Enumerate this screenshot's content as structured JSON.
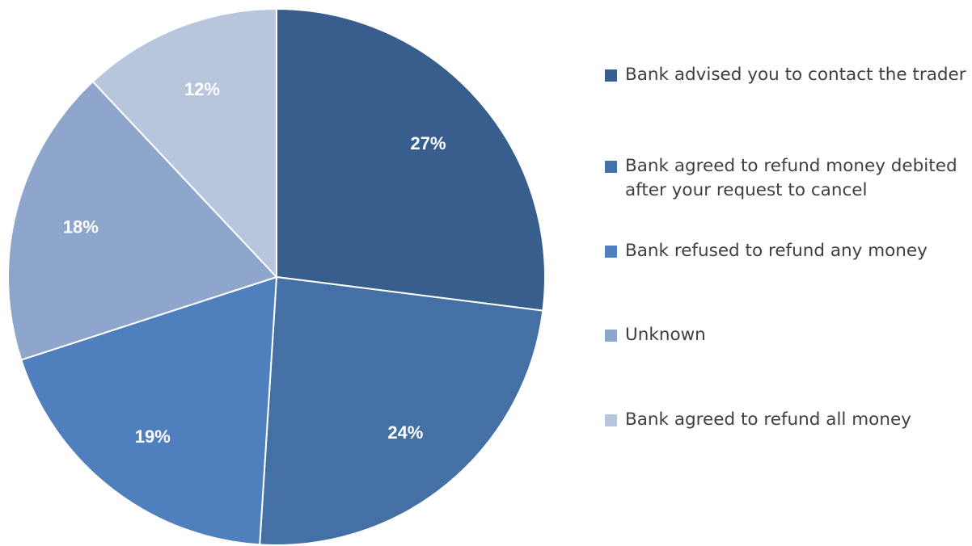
{
  "chart_data": {
    "type": "pie",
    "title": "",
    "legend_position": "right",
    "start_angle_deg": 0,
    "direction": "clockwise",
    "slices": [
      {
        "label": "Bank advised you to contact the trader",
        "value": 27,
        "display": "27%",
        "color": "#375E8C"
      },
      {
        "label": "Bank agreed to refund money debited after your request to cancel",
        "value": 24,
        "display": "24%",
        "color": "#4470A5"
      },
      {
        "label": "Bank refused to refund any money",
        "value": 19,
        "display": "19%",
        "color": "#4F7FBD"
      },
      {
        "label": "Unknown",
        "value": 18,
        "display": "18%",
        "color": "#8EA6CC"
      },
      {
        "label": "Bank agreed to refund all money",
        "value": 12,
        "display": "12%",
        "color": "#B8C6DD"
      }
    ]
  },
  "legend": {
    "items": [
      {
        "label": "Bank advised you to contact the trader",
        "color": "#375E8C"
      },
      {
        "label": "Bank agreed to refund money debited after your request to cancel",
        "color": "#4470A5"
      },
      {
        "label": "Bank refused to refund any money",
        "color": "#4F7FBD"
      },
      {
        "label": "Unknown",
        "color": "#8EA6CC"
      },
      {
        "label": "Bank agreed to refund all money",
        "color": "#B8C6DD"
      }
    ]
  }
}
